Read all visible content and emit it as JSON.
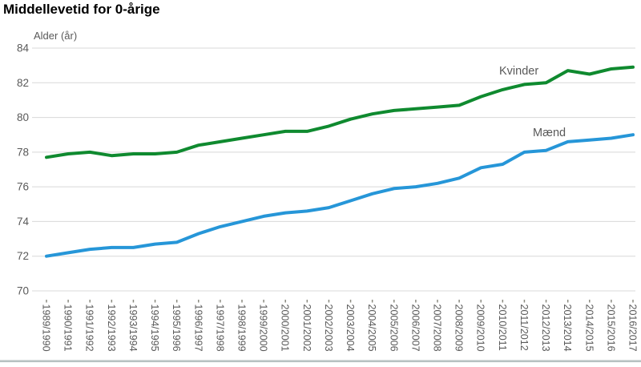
{
  "page": {
    "title": "Middellevetid for 0-årige",
    "y_axis_title": "Alder (år)"
  },
  "chart_data": {
    "type": "line",
    "title": "Middellevetid for 0-årige",
    "ylabel": "Alder (år)",
    "xlabel": "",
    "grid": "horizontal",
    "legend_position": "inline-labels-near-lines",
    "ylim": [
      70,
      84
    ],
    "ytick_step": 2,
    "categories": [
      "1989/1990",
      "1990/1991",
      "1991/1992",
      "1992/1993",
      "1993/1994",
      "1994/1995",
      "1995/1996",
      "1996/1997",
      "1997/1998",
      "1998/1999",
      "1999/2000",
      "2000/2001",
      "2001/2002",
      "2002/2003",
      "2003/2004",
      "2004/2005",
      "2005/2006",
      "2006/2007",
      "2007/2008",
      "2008/2009",
      "2009/2010",
      "2010/2011",
      "2011/2012",
      "2012/2013",
      "2013/2014",
      "2014/2015",
      "2015/2016",
      "2016/2017"
    ],
    "series": [
      {
        "name": "Kvinder",
        "color": "#0f8a2f",
        "values": [
          77.7,
          77.9,
          78.0,
          77.8,
          77.9,
          77.9,
          78.0,
          78.4,
          78.6,
          78.8,
          79.0,
          79.2,
          79.2,
          79.5,
          79.9,
          80.2,
          80.4,
          80.5,
          80.6,
          80.7,
          81.2,
          81.6,
          81.9,
          82.0,
          82.7,
          82.5,
          82.8,
          82.9
        ],
        "label_x": 623,
        "label_y": 93
      },
      {
        "name": "Mænd",
        "color": "#2696d8",
        "values": [
          72.0,
          72.2,
          72.4,
          72.5,
          72.5,
          72.7,
          72.8,
          73.3,
          73.7,
          74.0,
          74.3,
          74.5,
          74.6,
          74.8,
          75.2,
          75.6,
          75.9,
          76.0,
          76.2,
          76.5,
          77.1,
          77.3,
          78.0,
          78.1,
          78.6,
          78.7,
          78.8,
          79.0
        ],
        "label_x": 665,
        "label_y": 170
      }
    ]
  },
  "colors": {
    "background": "#ffffff",
    "gridline": "#d8d8d8",
    "axis_text": "#595959",
    "tick_mark": "#8a8a80",
    "bottom_border": "#a9b6b6"
  }
}
